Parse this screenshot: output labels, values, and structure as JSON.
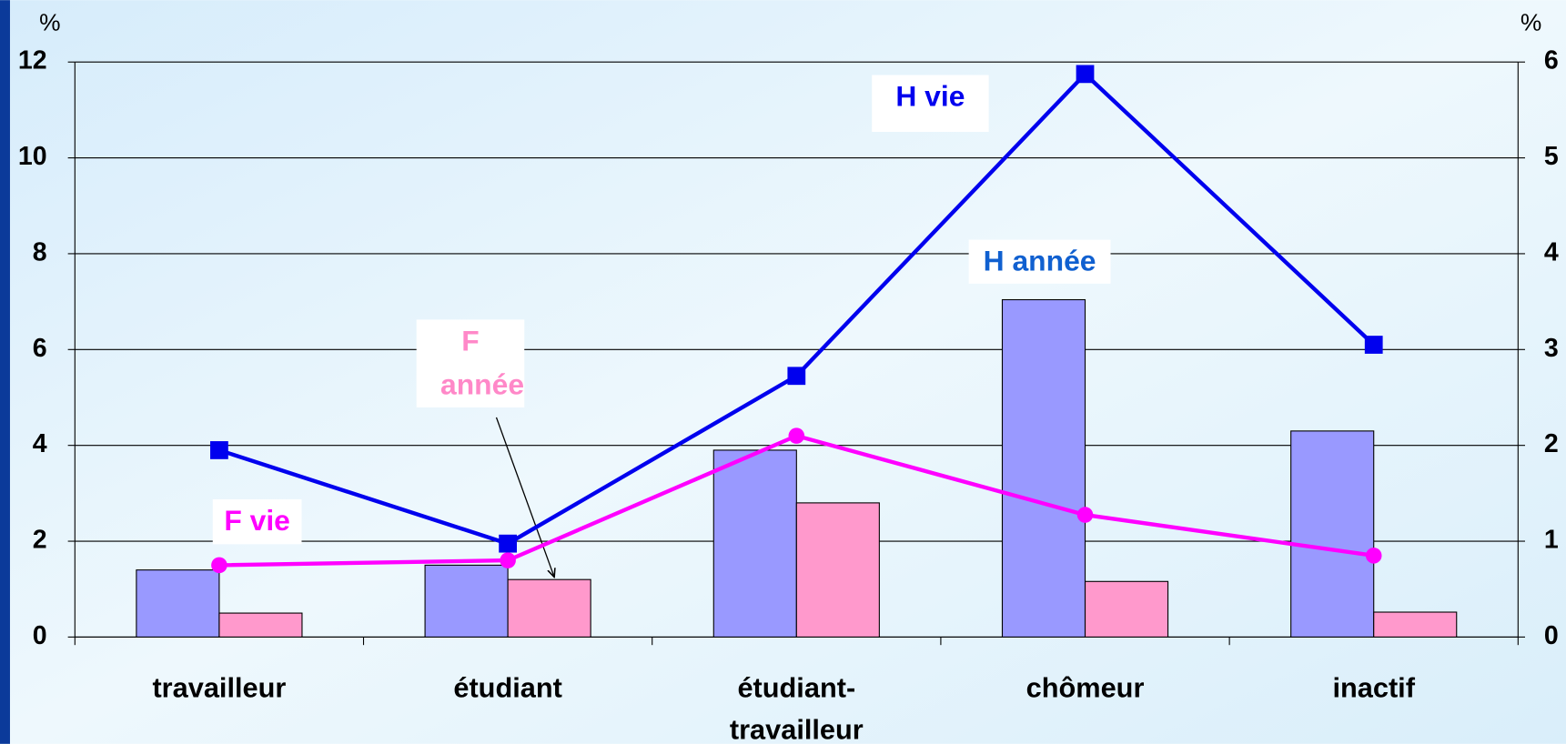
{
  "chart_data": {
    "type": "bar",
    "categories": [
      "travailleur",
      "étudiant",
      "étudiant-travailleur",
      "chômeur",
      "inactif"
    ],
    "y_unit": "%",
    "y2_unit": "%",
    "ylim": [
      0,
      12
    ],
    "yticks": [
      0,
      2,
      4,
      6,
      8,
      10,
      12
    ],
    "y2lim": [
      0,
      6
    ],
    "y2ticks": [
      0,
      1,
      2,
      3,
      4,
      5,
      6
    ],
    "grid": true,
    "series": [
      {
        "name": "H année",
        "type": "bar",
        "axis": "y2",
        "color": "#9999ff",
        "values": [
          0.7,
          0.75,
          1.95,
          3.52,
          2.15
        ]
      },
      {
        "name": "F année",
        "type": "bar",
        "axis": "y2",
        "color": "#ff99cc",
        "values": [
          0.25,
          0.6,
          1.4,
          0.58,
          0.26
        ]
      },
      {
        "name": "H vie",
        "type": "line",
        "axis": "y",
        "color": "#0000ee",
        "values": [
          3.9,
          1.95,
          5.45,
          11.75,
          6.1
        ]
      },
      {
        "name": "F vie",
        "type": "line",
        "axis": "y",
        "color": "#ff00ff",
        "values": [
          1.5,
          1.6,
          4.2,
          2.55,
          1.7
        ]
      }
    ]
  }
}
